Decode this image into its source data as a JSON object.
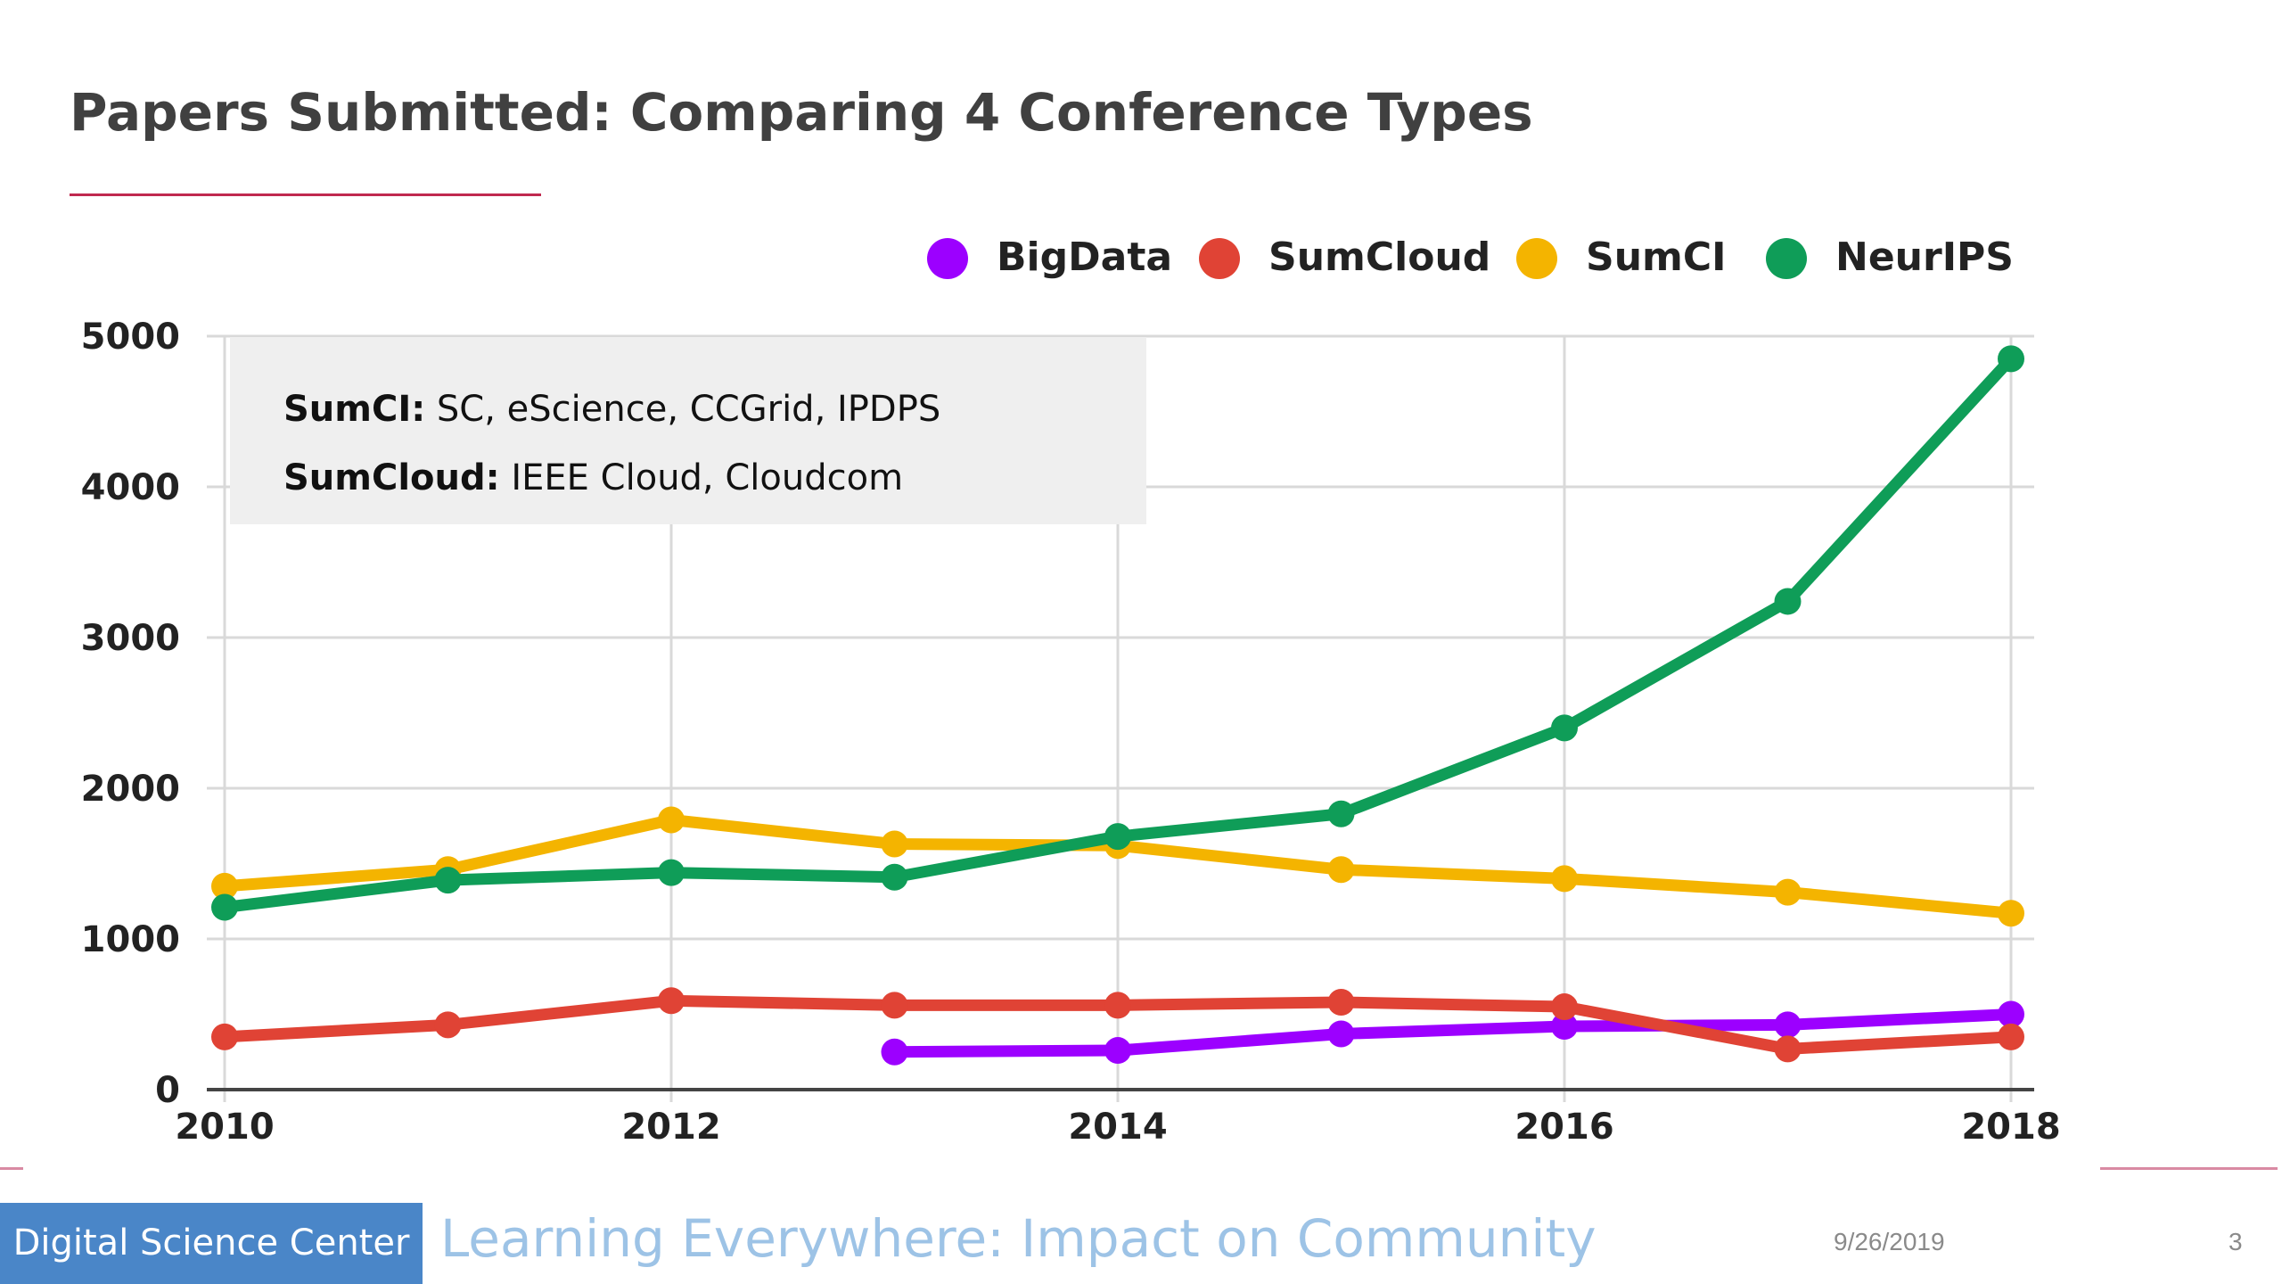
{
  "slide": {
    "title": "Papers Submitted: Comparing 4 Conference Types",
    "footer": {
      "org": "Digital Science Center",
      "subtitle": "Learning Everywhere: Impact on Community",
      "date": "9/26/2019",
      "page": "3"
    }
  },
  "colors": {
    "accent_rule": "#c0294f",
    "badge": "#4a86c8",
    "subtitle": "#9dc3e6"
  },
  "chart_data": {
    "type": "line",
    "x": [
      2010,
      2011,
      2012,
      2013,
      2014,
      2015,
      2016,
      2017,
      2018
    ],
    "xticks": [
      "2010",
      "2012",
      "2014",
      "2016",
      "2018"
    ],
    "yticks": [
      "0",
      "1000",
      "2000",
      "3000",
      "4000",
      "5000"
    ],
    "ylim": [
      0,
      5000
    ],
    "xlim": [
      2010,
      2018
    ],
    "grid": true,
    "legend_position": "top-right",
    "series": [
      {
        "name": "BigData",
        "color": "#9c00ff",
        "values": [
          null,
          null,
          null,
          250,
          260,
          370,
          420,
          430,
          500
        ]
      },
      {
        "name": "SumCloud",
        "color": "#e04335",
        "values": [
          350,
          430,
          590,
          560,
          560,
          580,
          550,
          270,
          350
        ]
      },
      {
        "name": "SumCI",
        "color": "#f4b400",
        "values": [
          1350,
          1460,
          1790,
          1630,
          1620,
          1460,
          1400,
          1310,
          1170
        ]
      },
      {
        "name": "NeurIPS",
        "color": "#0f9d58",
        "values": [
          1210,
          1390,
          1440,
          1410,
          1680,
          1830,
          2400,
          3240,
          4850
        ]
      }
    ],
    "annotation": {
      "lines": [
        {
          "label": "SumCI:",
          "text": " SC, eScience, CCGrid, IPDPS"
        },
        {
          "label": "SumCloud:",
          "text": " IEEE Cloud, Cloudcom"
        }
      ]
    }
  }
}
